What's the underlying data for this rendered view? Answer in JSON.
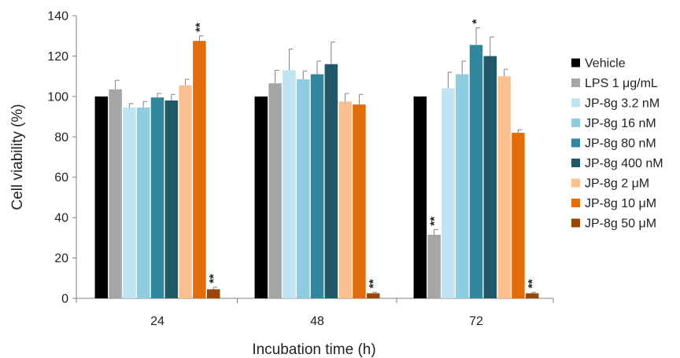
{
  "chart_data": {
    "type": "bar",
    "title": "",
    "xlabel": "Incubation time (h)",
    "ylabel": "Cell viability (%)",
    "ylim": [
      0,
      140
    ],
    "yticks": [
      0,
      20,
      40,
      60,
      80,
      100,
      120,
      140
    ],
    "categories": [
      "24",
      "48",
      "72"
    ],
    "grid": false,
    "legend_position": "right",
    "series": [
      {
        "name": "Vehicle",
        "color": "#000000",
        "values": [
          100,
          100,
          100
        ],
        "errors": [
          0,
          0,
          0
        ],
        "sig": [
          "",
          "",
          ""
        ]
      },
      {
        "name": "LPS 1 μg/mL",
        "color": "#a6a6a6",
        "values": [
          103.5,
          106.5,
          31.5
        ],
        "errors": [
          4.5,
          6.5,
          2.5
        ],
        "sig": [
          "",
          "",
          "**"
        ]
      },
      {
        "name": "JP-8g 3.2 nM",
        "color": "#bfe3f0",
        "values": [
          94.5,
          113,
          104
        ],
        "errors": [
          2,
          10.5,
          8
        ],
        "sig": [
          "",
          "",
          ""
        ]
      },
      {
        "name": "JP-8g 16 nM",
        "color": "#8fcce0",
        "values": [
          94.5,
          108.5,
          111
        ],
        "errors": [
          3,
          4,
          6.5
        ],
        "sig": [
          "",
          "",
          ""
        ]
      },
      {
        "name": "JP-8g 80 nM",
        "color": "#31869b",
        "values": [
          99.5,
          111,
          125.5
        ],
        "errors": [
          2,
          6.5,
          8.5
        ],
        "sig": [
          "",
          "",
          "*"
        ]
      },
      {
        "name": "JP-8g 400 nM",
        "color": "#215867",
        "values": [
          98,
          116,
          120
        ],
        "errors": [
          3,
          11,
          9.5
        ],
        "sig": [
          "",
          "",
          ""
        ]
      },
      {
        "name": "JP-8g 2 μM",
        "color": "#fac090",
        "values": [
          105.5,
          97.5,
          110
        ],
        "errors": [
          3,
          4,
          3.5
        ],
        "sig": [
          "",
          "",
          ""
        ]
      },
      {
        "name": "JP-8g 10 μM",
        "color": "#e36c0a",
        "values": [
          127.5,
          96,
          82
        ],
        "errors": [
          2.5,
          5,
          1.5
        ],
        "sig": [
          "**",
          "",
          ""
        ]
      },
      {
        "name": "JP-8g 50 μM",
        "color": "#974806",
        "values": [
          4.5,
          2.5,
          2.5
        ],
        "errors": [
          1,
          0.5,
          0.5
        ],
        "sig": [
          "**",
          "**",
          "**"
        ]
      }
    ]
  }
}
